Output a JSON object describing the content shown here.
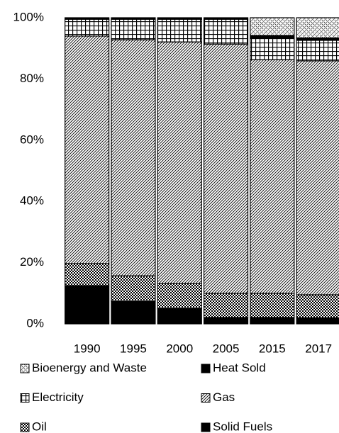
{
  "chart_data": {
    "type": "stacked_bar",
    "categories": [
      "1990",
      "1995",
      "2000",
      "2005",
      "2015",
      "2017"
    ],
    "series": [
      {
        "name": "Bioenergy and Waste",
        "pattern": "dots",
        "values": [
          0,
          0,
          0,
          0,
          5.8,
          6.6
        ]
      },
      {
        "name": "Heat Sold",
        "pattern": "solid",
        "values": [
          0.5,
          0.5,
          0.5,
          0.5,
          0.9,
          0.8
        ]
      },
      {
        "name": "Electricity",
        "pattern": "grid",
        "values": [
          5.5,
          6.7,
          7.4,
          8.1,
          7.0,
          6.7
        ]
      },
      {
        "name": "Gas",
        "pattern": "diagonal",
        "values": [
          74.3,
          77.1,
          78.9,
          81.4,
          76.3,
          76.4
        ]
      },
      {
        "name": "Oil",
        "pattern": "checker",
        "values": [
          7.2,
          8.3,
          8.1,
          7.9,
          7.9,
          7.5
        ]
      },
      {
        "name": "Solid Fuels",
        "pattern": "solid",
        "values": [
          12.5,
          7.4,
          5.1,
          2.1,
          2.1,
          2.0
        ]
      }
    ],
    "ylim": [
      0,
      100
    ],
    "yticks": [
      {
        "value": 0,
        "label": "0%"
      },
      {
        "value": 20,
        "label": "20%"
      },
      {
        "value": 40,
        "label": "40%"
      },
      {
        "value": 60,
        "label": "60%"
      },
      {
        "value": 80,
        "label": "80%"
      },
      {
        "value": 100,
        "label": "100%"
      }
    ]
  }
}
